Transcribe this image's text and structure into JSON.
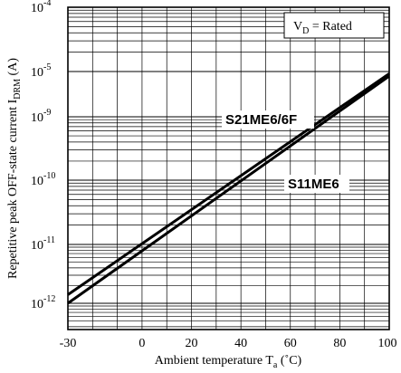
{
  "chart_data": {
    "type": "line",
    "title": "",
    "xlabel": "Ambient temperature T",
    "xlabel_sub": "a",
    "xlabel_unit": " (˚C)",
    "ylabel": "Repetitive peak OFF-state current I",
    "ylabel_sub": "DRM",
    "ylabel_unit": " (A)",
    "xlim": [
      -30,
      100
    ],
    "x_ticks": [
      -30,
      0,
      20,
      40,
      60,
      80,
      100
    ],
    "y_ticks": [
      {
        "base": "10",
        "exp": "-12",
        "value": 1e-12
      },
      {
        "base": "10",
        "exp": "-11",
        "value": 1e-11
      },
      {
        "base": "10",
        "exp": "-10",
        "value": 1e-10
      },
      {
        "base": "10",
        "exp": "-9",
        "value": 1e-09
      },
      {
        "base": "10",
        "exp": "-5",
        "value": 1e-05
      },
      {
        "base": "10",
        "exp": "-4",
        "value": 0.0001
      }
    ],
    "y_scale": "log",
    "grid": true,
    "condition": "V",
    "condition_sub": "D",
    "condition_rest": " = Rated",
    "series": [
      {
        "name": "S21ME6/6F",
        "x": [
          -30,
          100
        ],
        "y": [
          1.4e-12,
          6.5e-06
        ]
      },
      {
        "name": "S11ME6",
        "x": [
          -30,
          100
        ],
        "y": [
          1e-12,
          4e-06
        ]
      }
    ]
  }
}
